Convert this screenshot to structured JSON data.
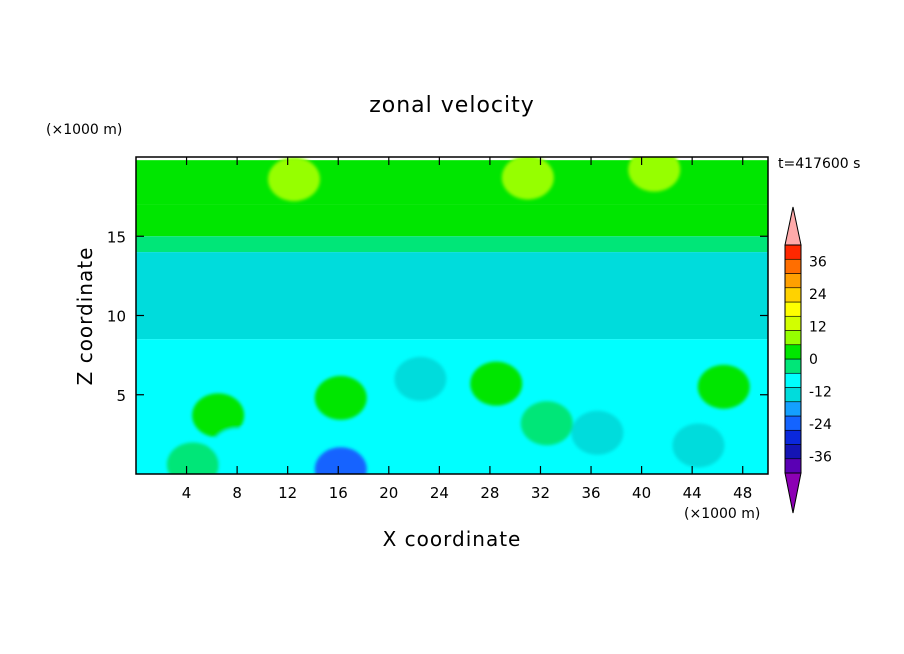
{
  "chart_data": {
    "type": "heatmap",
    "title": "zonal velocity",
    "xlabel": "X coordinate",
    "ylabel": "Z coordinate",
    "x_unit": "(×1000 m)",
    "y_unit": "(×1000 m)",
    "time_label": "t=417600 s",
    "xlim": [
      0,
      50
    ],
    "ylim": [
      0,
      20
    ],
    "x_ticks": [
      4,
      8,
      12,
      16,
      20,
      24,
      28,
      32,
      36,
      40,
      44,
      48
    ],
    "y_ticks": [
      5,
      10,
      15
    ],
    "colorbar": {
      "ticks": [
        36,
        24,
        12,
        0,
        -12,
        -24,
        -36
      ],
      "levels": [
        -42,
        -36,
        -30,
        -24,
        -18,
        -12,
        -6,
        0,
        6,
        12,
        18,
        24,
        30,
        36,
        42
      ],
      "colors": [
        "#8c00b4",
        "#5a00b4",
        "#1414b4",
        "#0a28dc",
        "#1464ff",
        "#14a0ff",
        "#00dcdc",
        "#00ffff",
        "#00e678",
        "#00e600",
        "#96ff00",
        "#d2ff00",
        "#ffff00",
        "#ffd200",
        "#ffa000",
        "#ff6e00",
        "#ff2800",
        "#ffaaaa"
      ],
      "extend": "both"
    },
    "bands": [
      {
        "z": [
          19.8,
          17.0
        ],
        "value": 9,
        "note": "upper layer yellow-green with yellow patches"
      },
      {
        "z": [
          17.0,
          15.0
        ],
        "value": 6
      },
      {
        "z": [
          15.0,
          14.0
        ],
        "value": 1
      },
      {
        "z": [
          14.0,
          8.5
        ],
        "value": -8
      },
      {
        "z": [
          8.5,
          0.0
        ],
        "value": -1
      }
    ],
    "features": [
      {
        "x": 12.5,
        "z": 18.6,
        "value": 12
      },
      {
        "x": 31,
        "z": 18.7,
        "value": 15
      },
      {
        "x": 41,
        "z": 19.2,
        "value": 15
      },
      {
        "x": 27,
        "z": 11.5,
        "value": -12
      },
      {
        "x": 16.2,
        "z": 4.8,
        "value": 8
      },
      {
        "x": 28.5,
        "z": 5.7,
        "value": 8
      },
      {
        "x": 46.5,
        "z": 5.5,
        "value": 8
      },
      {
        "x": 22.5,
        "z": 6.0,
        "value": -10
      },
      {
        "x": 36.5,
        "z": 2.6,
        "value": -10
      },
      {
        "x": 16.2,
        "z": 0.3,
        "value": -20
      },
      {
        "x": 6.5,
        "z": 3.7,
        "value": 7
      },
      {
        "x": 8.0,
        "z": 1.5,
        "value": -6
      },
      {
        "x": 4.5,
        "z": 0.6,
        "value": 4
      },
      {
        "x": 32.5,
        "z": 3.2,
        "value": 5
      },
      {
        "x": 44.5,
        "z": 1.8,
        "value": -8
      }
    ]
  }
}
